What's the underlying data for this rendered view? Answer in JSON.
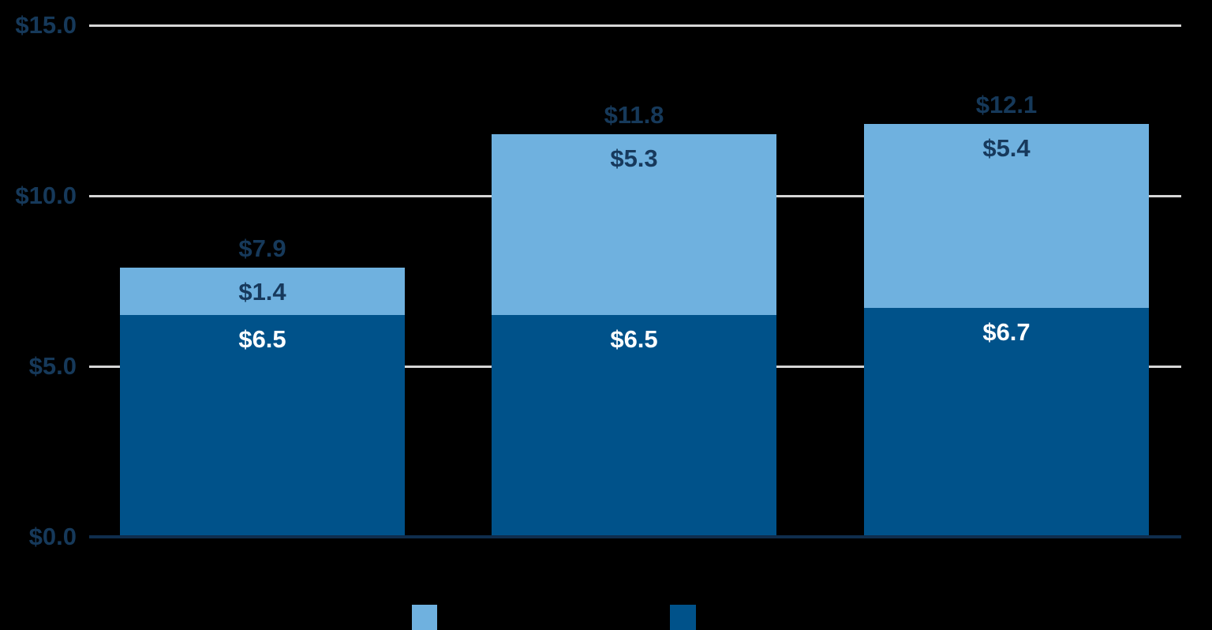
{
  "page": {
    "background": "#000000"
  },
  "chart_data": {
    "type": "bar",
    "variant": "stacked-column",
    "title": "",
    "categories": [
      "",
      "",
      ""
    ],
    "series": [
      {
        "name": "bottom-segment",
        "color": "#00528A",
        "label_color": "#FFFFFF",
        "values": [
          6.5,
          6.5,
          6.7
        ],
        "labels": [
          "$6.5",
          "$6.5",
          "$6.7"
        ]
      },
      {
        "name": "top-segment",
        "color": "#6FB1DF",
        "label_color": "#17395C",
        "values": [
          1.4,
          5.3,
          5.4
        ],
        "labels": [
          "$1.4",
          "$5.3",
          "$5.4"
        ]
      }
    ],
    "totals": {
      "values": [
        7.9,
        11.8,
        12.1
      ],
      "labels": [
        "$7.9",
        "$11.8",
        "$12.1"
      ]
    },
    "y_axis": {
      "ticks": [
        {
          "value": 0,
          "label": "$0.0"
        },
        {
          "value": 5,
          "label": "$5.0"
        },
        {
          "value": 10,
          "label": "$10.0"
        },
        {
          "value": 15,
          "label": "$15.0"
        }
      ],
      "range": [
        0,
        15
      ],
      "label_color": "#16395A"
    },
    "grid": {
      "show": true,
      "color": "#D6D6D6"
    },
    "axis_line_color": "#0F2D4D",
    "legend": {
      "position": "bottom",
      "items": [
        {
          "swatch_color": "#6FB1DF",
          "label": ""
        },
        {
          "swatch_color": "#00528A",
          "label": ""
        }
      ]
    }
  }
}
